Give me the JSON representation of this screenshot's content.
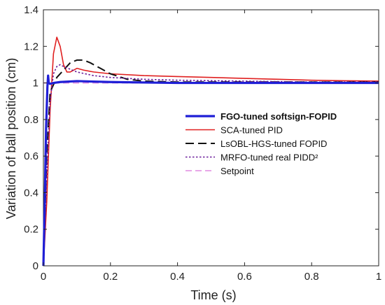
{
  "chart_data": {
    "type": "line",
    "title": "",
    "xlabel": "Time (s)",
    "ylabel": "Variation of ball position (cm)",
    "xlim": [
      0,
      1
    ],
    "ylim": [
      0,
      1.4
    ],
    "x_ticks": [
      "0",
      "0.2",
      "0.4",
      "0.6",
      "0.8",
      "1"
    ],
    "y_ticks": [
      "0",
      "0.2",
      "0.4",
      "0.6",
      "0.8",
      "1",
      "1.2",
      "1.4"
    ],
    "grid": false,
    "legend_position": "right",
    "series": [
      {
        "name": "FGO-tuned softsign-FOPID",
        "color": "#1f1fd6",
        "dash": "solid",
        "bold": true,
        "x": [
          0,
          0.004,
          0.008,
          0.012,
          0.014,
          0.016,
          0.02,
          0.03,
          0.05,
          0.1,
          0.2,
          0.4,
          0.6,
          0.8,
          1.0
        ],
        "y": [
          0,
          0.35,
          0.75,
          0.98,
          1.04,
          1.0,
          0.995,
          1.0,
          1.005,
          1.01,
          1.005,
          1.0,
          1.0,
          1.0,
          1.0
        ]
      },
      {
        "name": "SCA-tuned PID",
        "color": "#e02020",
        "dash": "solid",
        "bold": false,
        "x": [
          0,
          0.01,
          0.02,
          0.03,
          0.04,
          0.05,
          0.06,
          0.07,
          0.08,
          0.1,
          0.12,
          0.15,
          0.2,
          0.3,
          0.4,
          0.5,
          0.6,
          0.7,
          0.8,
          0.9,
          1.0
        ],
        "y": [
          0,
          0.35,
          0.85,
          1.16,
          1.25,
          1.2,
          1.1,
          1.06,
          1.06,
          1.08,
          1.07,
          1.06,
          1.05,
          1.04,
          1.035,
          1.03,
          1.025,
          1.02,
          1.015,
          1.012,
          1.01
        ]
      },
      {
        "name": "LsOBL-HGS-tuned FOPID",
        "color": "#111111",
        "dash": "dashed",
        "bold": false,
        "x": [
          0,
          0.01,
          0.02,
          0.04,
          0.06,
          0.08,
          0.1,
          0.12,
          0.14,
          0.17,
          0.2,
          0.25,
          0.3,
          0.4,
          0.6,
          0.8,
          1.0
        ],
        "y": [
          0,
          0.6,
          0.95,
          1.03,
          1.07,
          1.11,
          1.125,
          1.125,
          1.11,
          1.08,
          1.05,
          1.02,
          1.01,
          1.005,
          1.005,
          1.005,
          1.005
        ]
      },
      {
        "name": "MRFO-tuned real PIDD²",
        "color": "#6a1b9a",
        "dash": "dotted",
        "bold": false,
        "x": [
          0,
          0.01,
          0.02,
          0.03,
          0.04,
          0.05,
          0.06,
          0.08,
          0.1,
          0.15,
          0.2,
          0.3,
          0.4,
          0.6,
          0.8,
          1.0
        ],
        "y": [
          0,
          0.5,
          0.9,
          1.05,
          1.09,
          1.1,
          1.09,
          1.075,
          1.06,
          1.04,
          1.03,
          1.02,
          1.015,
          1.01,
          1.005,
          1.005
        ]
      },
      {
        "name": "Setpoint",
        "color": "#e08ae0",
        "dash": "dashed",
        "bold": false,
        "x": [
          0,
          1.0
        ],
        "y": [
          1,
          1
        ]
      }
    ]
  }
}
